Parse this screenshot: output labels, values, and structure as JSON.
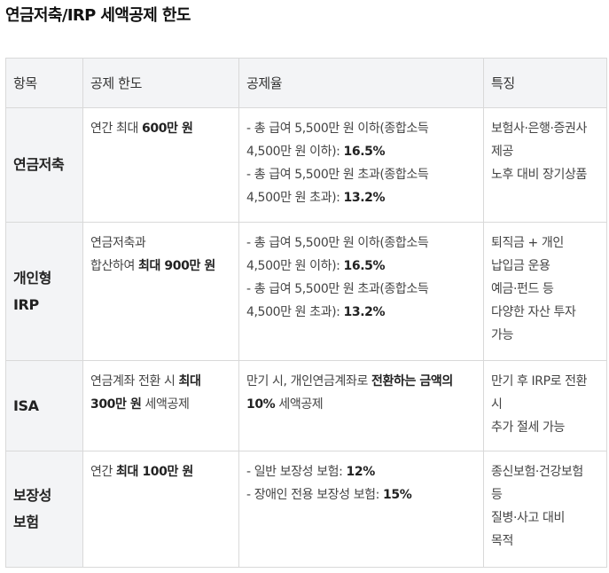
{
  "title": "연금저축/IRP 세액공제 한도",
  "headers": [
    "항목",
    "공제 한도",
    "공제율",
    "특징"
  ],
  "rows": [
    {
      "item": [
        "연금저축"
      ],
      "limit": [
        [
          "연간 최대 ",
          "600만 원",
          ""
        ]
      ],
      "rate": [
        [
          "- 총 급여 5,500만 원 이하(종합소득",
          "",
          ""
        ],
        [
          "4,500만 원 이하): ",
          "16.5%",
          ""
        ],
        [
          "- 총 급여 5,500만 원 초과(종합소득",
          "",
          ""
        ],
        [
          "4,500만 원 초과): ",
          "13.2%",
          ""
        ]
      ],
      "features": [
        "보험사·은행·증권사",
        "제공",
        "노후 대비 장기상품"
      ]
    },
    {
      "item": [
        "개인형",
        "IRP"
      ],
      "limit": [
        [
          "연금저축과",
          "",
          ""
        ],
        [
          "합산하여 ",
          "최대 900만 원",
          ""
        ]
      ],
      "rate": [
        [
          "- 총 급여 5,500만 원 이하(종합소득",
          "",
          ""
        ],
        [
          "4,500만 원 이하): ",
          "16.5%",
          ""
        ],
        [
          "- 총 급여 5,500만 원 초과(종합소득",
          "",
          ""
        ],
        [
          "4,500만 원 초과): ",
          "13.2%",
          ""
        ]
      ],
      "features": [
        "퇴직금 + 개인",
        "납입금 운용",
        "예금·펀드 등",
        "다양한 자산 투자",
        "가능"
      ]
    },
    {
      "item": [
        "ISA"
      ],
      "limit": [
        [
          "연금계좌 전환 시 ",
          "최대",
          ""
        ],
        [
          "",
          "300만 원",
          " 세액공제"
        ]
      ],
      "rate": [
        [
          "만기 시, 개인연금계좌로 ",
          "전환하는 금액의",
          ""
        ],
        [
          "",
          "10%",
          " 세액공제"
        ]
      ],
      "features": [
        "만기 후 IRP로 전환",
        "시",
        "추가 절세 가능"
      ]
    },
    {
      "item": [
        "보장성",
        "보험"
      ],
      "limit": [
        [
          "연간 ",
          "최대 100만 원",
          ""
        ]
      ],
      "rate": [
        [
          "- 일반 보장성 보험: ",
          "12%",
          ""
        ],
        [
          "- 장애인 전용 보장성 보험: ",
          "15%",
          ""
        ]
      ],
      "features": [
        "종신보험·건강보험",
        "등",
        "질병·사고 대비",
        "목적"
      ]
    }
  ]
}
